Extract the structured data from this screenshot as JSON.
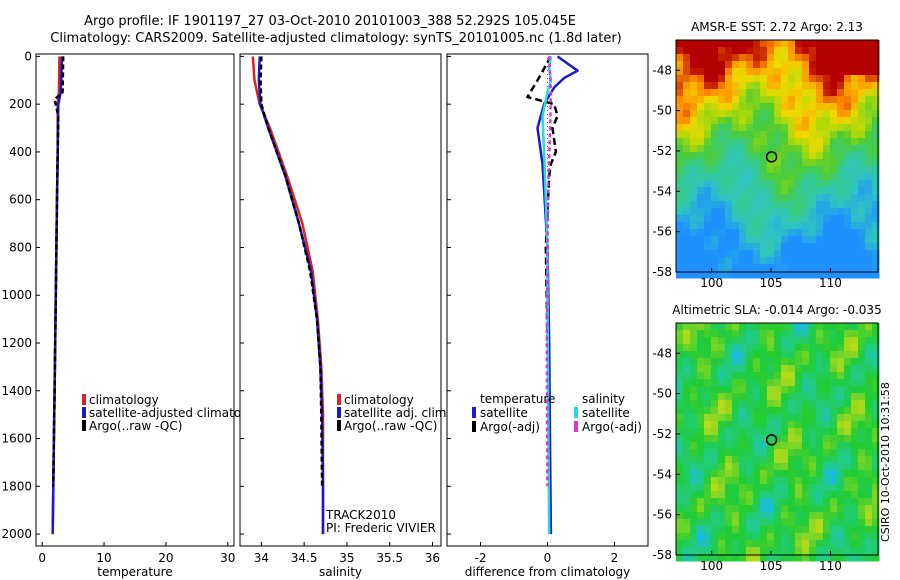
{
  "header": {
    "line1": "Argo profile: IF 1901197_27 03-Oct-2010 20101003_388 52.292S 105.045E",
    "line2": "Climatology: CARS2009. Satellite-adjusted climatology: synTS_20101005.nc (1.8d later)"
  },
  "side_label": "CSIRO 10-Oct-2010 10:31:58",
  "colors": {
    "red": "#dd2222",
    "blue": "#1a1acc",
    "black": "#000000",
    "cyan": "#22dddd",
    "magenta": "#dd33dd"
  },
  "chart_data": [
    {
      "id": "temperature",
      "type": "line",
      "xlabel": "temperature",
      "xlim": [
        -1,
        31
      ],
      "ylim": [
        2050,
        -10
      ],
      "xticks": [
        0,
        10,
        20,
        30
      ],
      "xtick_labels": [
        "0",
        "10",
        "20",
        "30"
      ],
      "yticks": [
        0,
        200,
        400,
        600,
        800,
        1000,
        1200,
        1400,
        1600,
        1800,
        2000
      ],
      "ytick_labels": [
        "0",
        "200",
        "400",
        "600",
        "800",
        "1000",
        "1200",
        "1400",
        "1600",
        "1800",
        "2000"
      ],
      "series": [
        {
          "name": "climatology",
          "color": "red",
          "dash": "",
          "x": [
            2.8,
            2.7,
            2.5,
            2.5,
            2.4,
            2.3,
            2.2,
            2.1,
            2.0,
            1.9,
            1.8,
            1.7
          ],
          "y": [
            0,
            150,
            200,
            400,
            600,
            800,
            1000,
            1200,
            1400,
            1600,
            1800,
            2000
          ]
        },
        {
          "name": "satellite-adjusted climatology",
          "color": "blue",
          "dash": "",
          "x": [
            3.2,
            3.0,
            2.6,
            2.5,
            2.4,
            2.3,
            2.2,
            2.1,
            2.0,
            1.9,
            1.8,
            1.7
          ],
          "y": [
            0,
            150,
            200,
            400,
            600,
            800,
            1000,
            1200,
            1400,
            1600,
            1800,
            2000
          ]
        },
        {
          "name": "Argo(..raw -QC)",
          "color": "black",
          "dash": "5,3",
          "x": [
            3.4,
            3.3,
            2.0,
            2.6,
            2.5,
            2.4,
            2.3,
            2.2,
            2.1,
            2.0,
            1.9,
            1.8
          ],
          "y": [
            0,
            150,
            180,
            250,
            400,
            600,
            800,
            1000,
            1200,
            1400,
            1600,
            1800
          ]
        }
      ],
      "legend_position": "bottom-right",
      "legend": [
        "climatology",
        "satellite-adjusted climatology",
        "Argo(..raw -QC)"
      ]
    },
    {
      "id": "salinity",
      "type": "line",
      "xlabel": "salinity",
      "xlim": [
        33.75,
        36.1
      ],
      "ylim": [
        2050,
        -10
      ],
      "xticks": [
        34,
        34.5,
        35,
        35.5,
        36
      ],
      "xtick_labels": [
        "34",
        "34.5",
        "35",
        "35.5",
        "36"
      ],
      "series": [
        {
          "name": "climatology",
          "color": "red",
          "dash": "",
          "x": [
            33.9,
            33.92,
            33.98,
            34.1,
            34.3,
            34.48,
            34.6,
            34.66,
            34.7,
            34.72,
            34.72,
            34.72
          ],
          "y": [
            0,
            100,
            200,
            300,
            500,
            700,
            900,
            1100,
            1300,
            1500,
            1800,
            2000
          ]
        },
        {
          "name": "satellite adj. clim.",
          "color": "blue",
          "dash": "",
          "x": [
            33.98,
            33.97,
            33.99,
            34.08,
            34.28,
            34.44,
            34.58,
            34.65,
            34.69,
            34.71,
            34.72,
            34.72
          ],
          "y": [
            0,
            100,
            200,
            300,
            500,
            700,
            900,
            1100,
            1300,
            1500,
            1800,
            2000
          ]
        },
        {
          "name": "Argo(..raw -QC)",
          "color": "black",
          "dash": "5,3",
          "x": [
            34.0,
            33.99,
            34.0,
            34.08,
            34.28,
            34.44,
            34.57,
            34.65,
            34.69,
            34.7,
            34.71
          ],
          "y": [
            0,
            100,
            200,
            300,
            500,
            700,
            900,
            1100,
            1300,
            1500,
            1800
          ]
        }
      ],
      "legend_position": "bottom-right",
      "legend": [
        "climatology",
        "satellite adj. clim.",
        "Argo(..raw -QC)"
      ],
      "annotations": [
        "TRACK2010",
        "PI: Frederic VIVIER"
      ]
    },
    {
      "id": "difference",
      "type": "line",
      "xlabel": "difference from climatology",
      "xlim": [
        -3,
        3
      ],
      "ylim": [
        2050,
        -10
      ],
      "xticks": [
        -2,
        0,
        2
      ],
      "xtick_labels": [
        "-2",
        "0",
        "2"
      ],
      "series": [
        {
          "name": "temperature satellite",
          "color": "blue",
          "dash": "",
          "x": [
            0.3,
            0.6,
            0.9,
            0.5,
            0.2,
            -0.1,
            -0.3,
            -0.15,
            0.0,
            0.05,
            0.08,
            0.1
          ],
          "y": [
            0,
            30,
            60,
            90,
            130,
            200,
            300,
            450,
            800,
            1200,
            1700,
            2000
          ]
        },
        {
          "name": "temperature Argo(-adj)",
          "color": "black",
          "dash": "7,4",
          "x": [
            0.1,
            -0.3,
            -0.6,
            0.2,
            0.3,
            0.15,
            0.25,
            0.1,
            0.05,
            -0.05,
            0.0
          ],
          "y": [
            0,
            100,
            170,
            200,
            250,
            300,
            400,
            450,
            500,
            800,
            1200
          ]
        },
        {
          "name": "salinity satellite",
          "color": "cyan",
          "dash": "",
          "x": [
            0.1,
            0.05,
            0.1,
            0.0,
            -0.15,
            -0.1,
            -0.05,
            0.0,
            0.0,
            0.02,
            0.05
          ],
          "y": [
            0,
            50,
            100,
            150,
            250,
            400,
            600,
            800,
            1000,
            1500,
            2000
          ]
        },
        {
          "name": "salinity Argo(-adj)",
          "color": "magenta",
          "dash": "4,3",
          "x": [
            0.05,
            0.1,
            0.08,
            0.03,
            0.0,
            -0.02,
            0.0
          ],
          "y": [
            0,
            150,
            300,
            500,
            800,
            1200,
            1800
          ]
        }
      ],
      "legend_position": "bottom-center",
      "legend_headers": [
        "temperature",
        "salinity"
      ],
      "legend": [
        "satellite",
        "Argo(-adj)",
        "satellite",
        "Argo(-adj)"
      ]
    },
    {
      "id": "sst-map",
      "type": "heatmap",
      "title": "AMSR-E SST: 2.72 Argo: 2.13",
      "xlim": [
        97,
        114
      ],
      "ylim": [
        -58,
        -46.5
      ],
      "xticks": [
        100,
        105,
        110
      ],
      "xtick_labels": [
        "100",
        "105",
        "110"
      ],
      "yticks": [
        -48,
        -50,
        -52,
        -54,
        -56,
        -58
      ],
      "ytick_labels": [
        "-48",
        "-50",
        "-52",
        "-54",
        "-56",
        "-58"
      ],
      "marker": {
        "lon": 105.045,
        "lat": -52.292
      }
    },
    {
      "id": "sla-map",
      "type": "heatmap",
      "title": "Altimetric SLA: -0.014 Argo: -0.035",
      "xlim": [
        97,
        114
      ],
      "ylim": [
        -58,
        -46.5
      ],
      "xticks": [
        100,
        105,
        110
      ],
      "xtick_labels": [
        "100",
        "105",
        "110"
      ],
      "yticks": [
        -48,
        -50,
        -52,
        -54,
        -56,
        -58
      ],
      "ytick_labels": [
        "-48",
        "-50",
        "-52",
        "-54",
        "-56",
        "-58"
      ],
      "marker": {
        "lon": 105.045,
        "lat": -52.292
      }
    }
  ]
}
